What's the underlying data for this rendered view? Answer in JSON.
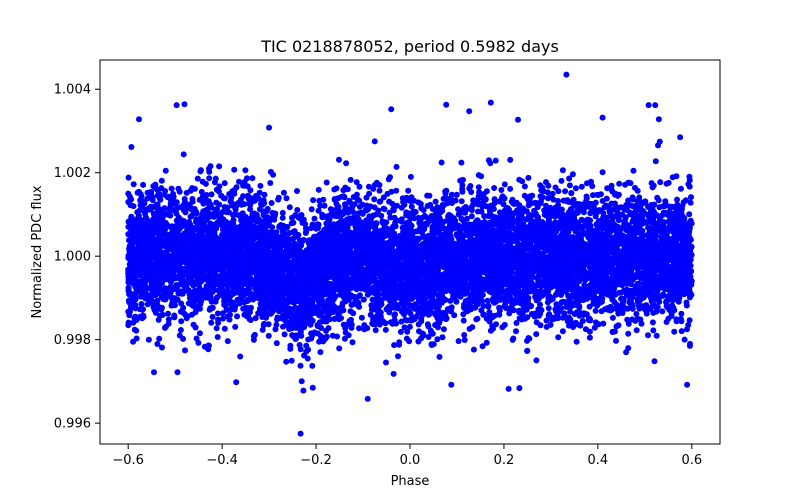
{
  "chart_data": {
    "type": "scatter",
    "title": "TIC 0218878052, period 0.5982 days",
    "xlabel": "Phase",
    "ylabel": "Normalized PDC flux",
    "xlim": [
      -0.66,
      0.66
    ],
    "ylim": [
      0.9955,
      1.0047
    ],
    "x_ticks": [
      -0.6,
      -0.4,
      -0.2,
      0.0,
      0.2,
      0.4,
      0.6
    ],
    "x_tick_labels": [
      "−0.6",
      "−0.4",
      "−0.2",
      "0.0",
      "0.2",
      "0.4",
      "0.6"
    ],
    "y_ticks": [
      0.996,
      0.998,
      1.0,
      1.002,
      1.004
    ],
    "y_tick_labels": [
      "0.996",
      "0.998",
      "1.000",
      "1.002",
      "1.004"
    ],
    "grid": false,
    "marker_color": "#0000ff",
    "series": [
      {
        "name": "PDC flux",
        "period_days": 0.5982,
        "phase_range": [
          -0.6,
          0.6
        ],
        "baseline_flux": 1.0,
        "scatter_sigma": 0.00075,
        "n_points": 9000,
        "dip": {
          "center_phase": -0.235,
          "depth": 0.0007,
          "width": 0.035
        },
        "secondary_dip": {
          "center_phase": 0.0,
          "depth": 0.0003,
          "width": 0.05
        },
        "outliers": [
          {
            "x": 0.333,
            "y": 1.00435
          },
          {
            "x": -0.233,
            "y": 0.99575
          },
          {
            "x": -0.09,
            "y": 0.99658
          },
          {
            "x": 0.172,
            "y": 1.00368
          },
          {
            "x": -0.497,
            "y": 1.00362
          },
          {
            "x": -0.48,
            "y": 1.00364
          },
          {
            "x": 0.077,
            "y": 1.00363
          },
          {
            "x": 0.508,
            "y": 1.00362
          },
          {
            "x": 0.522,
            "y": 1.00362
          },
          {
            "x": -0.577,
            "y": 1.00328
          },
          {
            "x": -0.04,
            "y": 1.00352
          },
          {
            "x": 0.126,
            "y": 1.00347
          },
          {
            "x": 0.23,
            "y": 1.00327
          },
          {
            "x": 0.41,
            "y": 1.00332
          },
          {
            "x": 0.53,
            "y": 1.00328
          },
          {
            "x": -0.37,
            "y": 0.99698
          },
          {
            "x": -0.227,
            "y": 0.99678
          },
          {
            "x": -0.207,
            "y": 0.99685
          },
          {
            "x": 0.088,
            "y": 0.99692
          },
          {
            "x": 0.21,
            "y": 0.99682
          },
          {
            "x": 0.233,
            "y": 0.99684
          },
          {
            "x": 0.59,
            "y": 0.99692
          },
          {
            "x": -0.035,
            "y": 0.99718
          },
          {
            "x": -0.495,
            "y": 0.99722
          },
          {
            "x": -0.545,
            "y": 0.99722
          },
          {
            "x": -0.075,
            "y": 1.00275
          },
          {
            "x": -0.3,
            "y": 1.00308
          },
          {
            "x": 0.575,
            "y": 1.00285
          }
        ]
      }
    ]
  }
}
